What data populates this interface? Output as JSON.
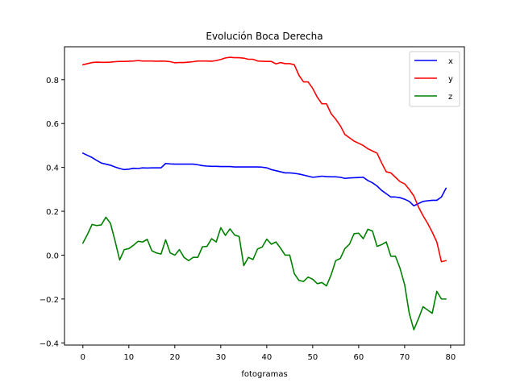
{
  "chart_data": {
    "type": "line",
    "title": "Evolución Boca Derecha",
    "xlabel": "fotogramas",
    "ylabel": "",
    "xlim": [
      -4,
      83
    ],
    "ylim": [
      -0.41,
      0.95
    ],
    "xticks": [
      0,
      10,
      20,
      30,
      40,
      50,
      60,
      70,
      80
    ],
    "yticks": [
      -0.4,
      -0.2,
      0.0,
      0.2,
      0.4,
      0.6,
      0.8
    ],
    "ytick_labels": [
      "−0.4",
      "−0.2",
      "0.0",
      "0.2",
      "0.4",
      "0.6",
      "0.8"
    ],
    "grid": false,
    "legend_position": "top-right",
    "x": [
      0,
      1,
      2,
      3,
      4,
      5,
      6,
      7,
      8,
      9,
      10,
      11,
      12,
      13,
      14,
      15,
      16,
      17,
      18,
      19,
      20,
      21,
      22,
      23,
      24,
      25,
      26,
      27,
      28,
      29,
      30,
      31,
      32,
      33,
      34,
      35,
      36,
      37,
      38,
      39,
      40,
      41,
      42,
      43,
      44,
      45,
      46,
      47,
      48,
      49,
      50,
      51,
      52,
      53,
      54,
      55,
      56,
      57,
      58,
      59,
      60,
      61,
      62,
      63,
      64,
      65,
      66,
      67,
      68,
      69,
      70,
      71,
      72,
      73,
      74,
      75,
      76,
      77,
      78,
      79
    ],
    "series": [
      {
        "name": "x",
        "color": "#0000ff",
        "values": [
          0.465,
          0.455,
          0.445,
          0.432,
          0.42,
          0.415,
          0.41,
          0.402,
          0.395,
          0.39,
          0.392,
          0.396,
          0.395,
          0.398,
          0.397,
          0.398,
          0.398,
          0.398,
          0.418,
          0.416,
          0.415,
          0.415,
          0.415,
          0.415,
          0.415,
          0.412,
          0.408,
          0.406,
          0.405,
          0.405,
          0.404,
          0.404,
          0.404,
          0.402,
          0.402,
          0.402,
          0.402,
          0.402,
          0.402,
          0.401,
          0.398,
          0.39,
          0.385,
          0.38,
          0.375,
          0.375,
          0.373,
          0.37,
          0.365,
          0.36,
          0.355,
          0.357,
          0.36,
          0.358,
          0.357,
          0.357,
          0.355,
          0.35,
          0.352,
          0.353,
          0.354,
          0.355,
          0.34,
          0.33,
          0.315,
          0.295,
          0.28,
          0.265,
          0.265,
          0.262,
          0.255,
          0.245,
          0.225,
          0.235,
          0.245,
          0.248,
          0.25,
          0.25,
          0.265,
          0.305
        ]
      },
      {
        "name": "y",
        "color": "#ff0000",
        "values": [
          0.868,
          0.873,
          0.878,
          0.88,
          0.879,
          0.879,
          0.88,
          0.882,
          0.883,
          0.883,
          0.884,
          0.885,
          0.887,
          0.885,
          0.885,
          0.885,
          0.884,
          0.885,
          0.884,
          0.882,
          0.877,
          0.878,
          0.878,
          0.88,
          0.882,
          0.885,
          0.885,
          0.885,
          0.884,
          0.887,
          0.892,
          0.899,
          0.902,
          0.9,
          0.9,
          0.898,
          0.893,
          0.893,
          0.885,
          0.884,
          0.883,
          0.883,
          0.872,
          0.878,
          0.873,
          0.873,
          0.868,
          0.82,
          0.79,
          0.79,
          0.76,
          0.72,
          0.69,
          0.69,
          0.645,
          0.62,
          0.59,
          0.55,
          0.535,
          0.52,
          0.51,
          0.5,
          0.485,
          0.475,
          0.465,
          0.42,
          0.38,
          0.375,
          0.355,
          0.335,
          0.325,
          0.3,
          0.27,
          0.22,
          0.18,
          0.145,
          0.105,
          0.06,
          -0.03,
          -0.025
        ]
      },
      {
        "name": "z",
        "color": "#008000",
        "values": [
          0.055,
          0.095,
          0.14,
          0.135,
          0.138,
          0.173,
          0.145,
          0.065,
          -0.022,
          0.025,
          0.03,
          0.045,
          0.063,
          0.06,
          0.072,
          0.02,
          0.01,
          0.005,
          0.07,
          0.01,
          0.0,
          0.025,
          -0.01,
          -0.025,
          -0.01,
          -0.01,
          0.038,
          0.04,
          0.075,
          0.06,
          0.125,
          0.09,
          0.12,
          0.092,
          0.085,
          -0.048,
          -0.01,
          -0.02,
          0.028,
          0.037,
          0.073,
          0.05,
          0.06,
          0.032,
          0.0,
          0.0,
          -0.085,
          -0.115,
          -0.12,
          -0.1,
          -0.11,
          -0.13,
          -0.125,
          -0.14,
          -0.09,
          -0.025,
          -0.015,
          0.03,
          0.05,
          0.098,
          0.1,
          0.075,
          0.118,
          0.11,
          0.04,
          0.048,
          0.06,
          -0.005,
          -0.005,
          -0.06,
          -0.135,
          -0.265,
          -0.34,
          -0.29,
          -0.235,
          -0.25,
          -0.265,
          -0.165,
          -0.2,
          -0.2
        ]
      }
    ]
  }
}
